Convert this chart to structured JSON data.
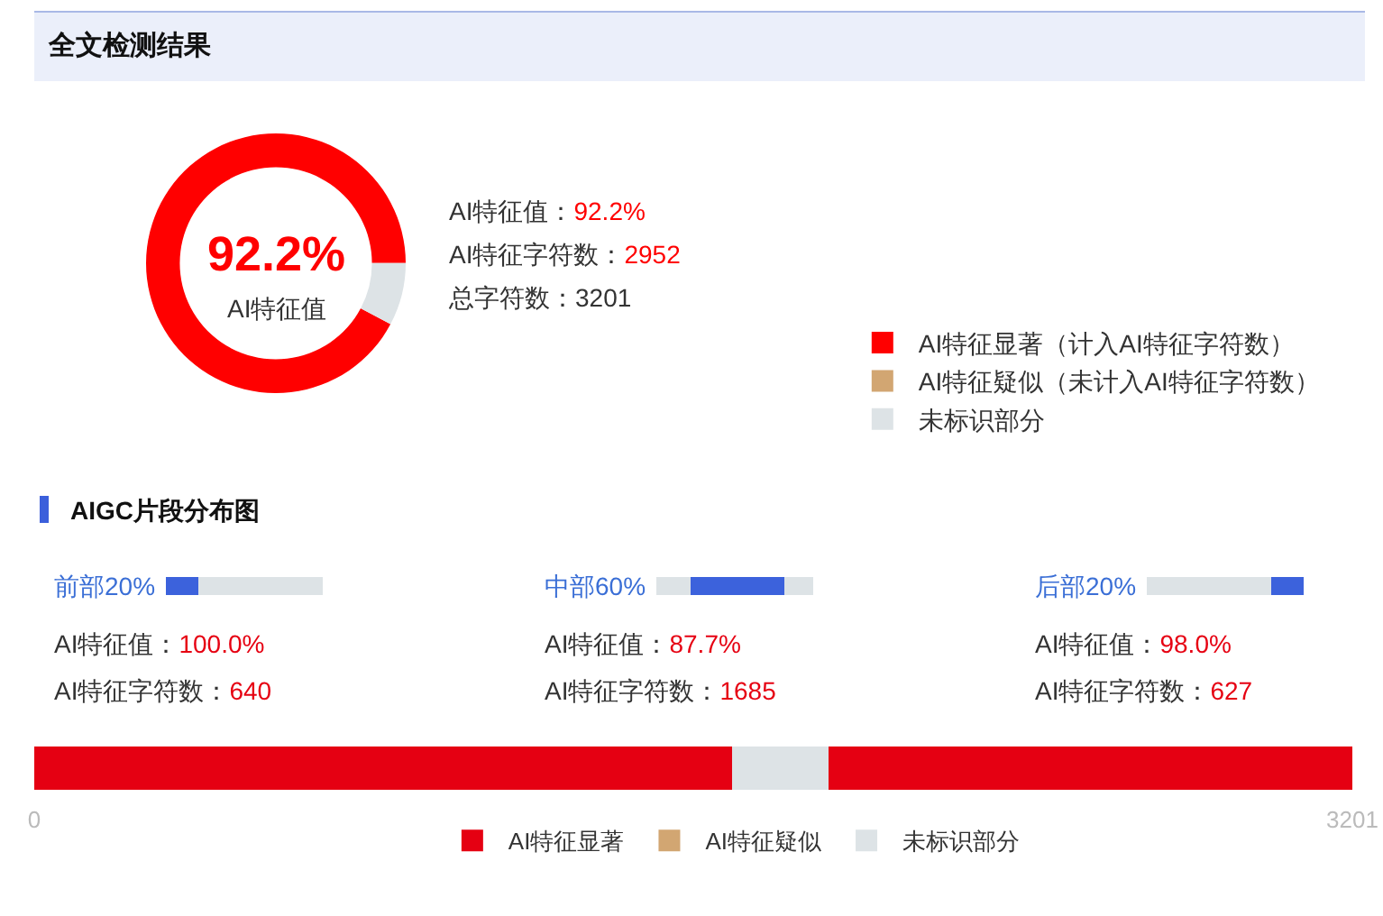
{
  "chart_data": [
    {
      "type": "donut",
      "title": "全文检测结果",
      "categories": [
        "AI特征显著（计入AI特征字符数）",
        "AI特征疑似（未计入AI特征字符数）",
        "未标识部分"
      ],
      "values": [
        92.2,
        0,
        7.8
      ],
      "colors": [
        "#ff0000",
        "#d2a672",
        "#dde3e6"
      ],
      "legend": "right",
      "annotations": [
        "92.2%",
        "AI特征值",
        "AI特征值：92.2%",
        "AI特征字符数：2952",
        "总字符数：3201"
      ]
    },
    {
      "type": "bar",
      "title": "AIGC片段分布图",
      "orientation": "horizontal",
      "stacked": true,
      "categories": [
        null
      ],
      "series": [
        {
          "name": "AI特征显著",
          "color": "#e50012",
          "values": [
            1694
          ]
        },
        {
          "name": "AI特征疑似",
          "color": "#d2a672",
          "values": [
            0
          ]
        },
        {
          "name": "未标识部分",
          "color": "#dde3e6",
          "values": [
            235
          ]
        },
        {
          "color": "#e50012",
          "values": [
            1272
          ]
        }
      ],
      "xlim": [
        0,
        3201
      ],
      "xticks": [
        0,
        3201
      ],
      "tick_labels": "x",
      "legend": "bottom",
      "annotations": [
        "前部20%",
        "AI特征值：100.0%",
        "AI特征字符数：640",
        "中部60%",
        "AI特征值：87.7%",
        "AI特征字符数：1685",
        "后部20%",
        "AI特征值：98.0%",
        "AI特征字符数：627"
      ]
    }
  ]
}
